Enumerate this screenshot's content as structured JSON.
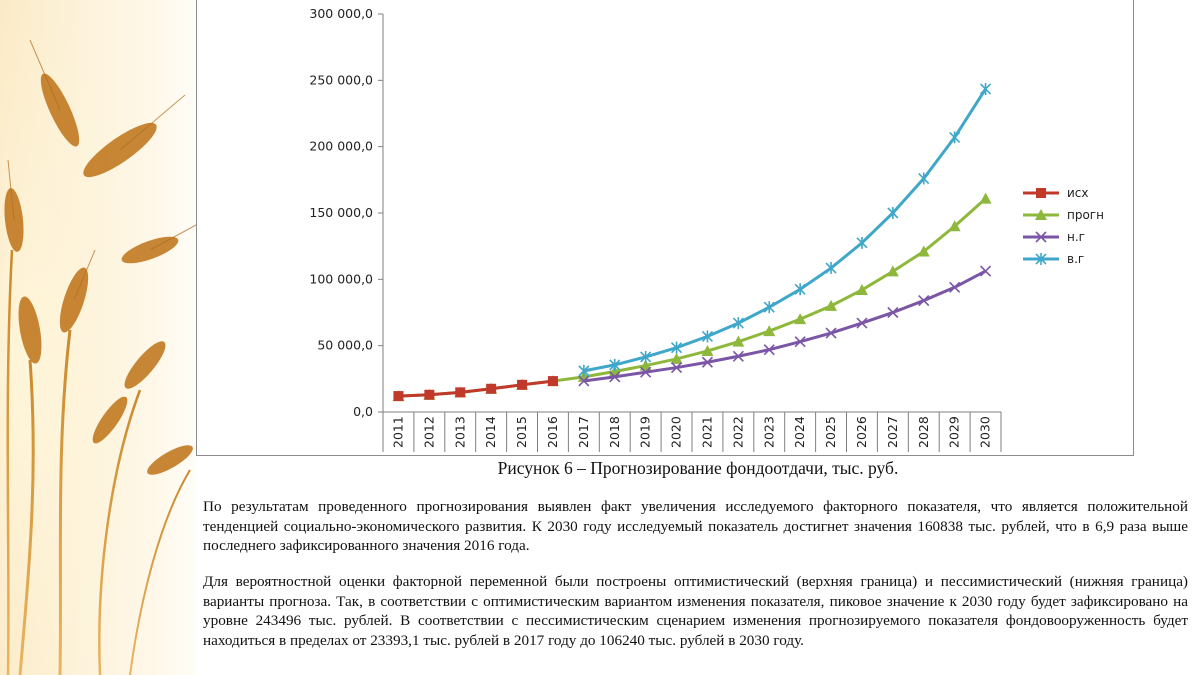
{
  "chart_data": {
    "type": "line",
    "title": "",
    "xlabel": "",
    "ylabel": "",
    "ylim": [
      0,
      300000
    ],
    "y_ticks": [
      "0,0",
      "50 000,0",
      "100 000,0",
      "150 000,0",
      "200 000,0",
      "250 000,0",
      "300 000,0"
    ],
    "y_tick_values": [
      0,
      50000,
      100000,
      150000,
      200000,
      250000,
      300000
    ],
    "categories": [
      "2011",
      "2012",
      "2013",
      "2014",
      "2015",
      "2016",
      "2017",
      "2018",
      "2019",
      "2020",
      "2021",
      "2022",
      "2023",
      "2024",
      "2025",
      "2026",
      "2027",
      "2028",
      "2029",
      "2030"
    ],
    "grid": false,
    "legend_position": "right",
    "series": [
      {
        "name": "исх",
        "color": "#c0392b",
        "marker": "square",
        "values": [
          12000,
          13000,
          14800,
          17500,
          20500,
          23300,
          null,
          null,
          null,
          null,
          null,
          null,
          null,
          null,
          null,
          null,
          null,
          null,
          null,
          null
        ]
      },
      {
        "name": "прогн",
        "color": "#8db83c",
        "marker": "triangle",
        "values": [
          12000,
          13000,
          14800,
          17500,
          20500,
          23300,
          26500,
          30500,
          35000,
          40000,
          46000,
          53000,
          61000,
          70000,
          80000,
          92000,
          106000,
          121000,
          140000,
          160838
        ]
      },
      {
        "name": "н.г",
        "color": "#7b56a6",
        "marker": "x",
        "values": [
          null,
          null,
          null,
          null,
          null,
          null,
          23393.1,
          26500,
          30000,
          33500,
          37500,
          42000,
          47000,
          53000,
          59500,
          67000,
          75000,
          84000,
          94000,
          106240
        ]
      },
      {
        "name": "в.г",
        "color": "#3fa7c9",
        "marker": "star",
        "values": [
          null,
          null,
          null,
          null,
          null,
          null,
          31000,
          35500,
          41500,
          48500,
          57000,
          67000,
          79000,
          92500,
          108500,
          127500,
          150000,
          176000,
          207000,
          243496
        ]
      }
    ]
  },
  "caption": "Рисунок 6 – Прогнозирование фондоотдачи, тыс. руб.",
  "paragraphs": [
    "По результатам проведенного прогнозирования выявлен факт увеличения исследуемого факторного показателя, что является положительной тенденцией социально-экономического развития. К 2030 году исследуемый показатель достигнет значения 160838 тыс. рублей, что в 6,9 раза выше последнего зафиксированного значения 2016 года.",
    "Для вероятностной оценки факторной переменной были построены оптимистический (верхняя граница) и пессимистический (нижняя граница) варианты прогноза. Так, в соответствии с оптимистическим вариантом изменения показателя, пиковое значение к 2030 году будет зафиксировано на уровне 243496 тыс. рублей. В соответствии с пессимистическим сценарием изменения прогнозируемого показателя фондовооруженность будет находиться в пределах от 23393,1 тыс. рублей в 2017 году до 106240 тыс. рублей в 2030 году."
  ]
}
